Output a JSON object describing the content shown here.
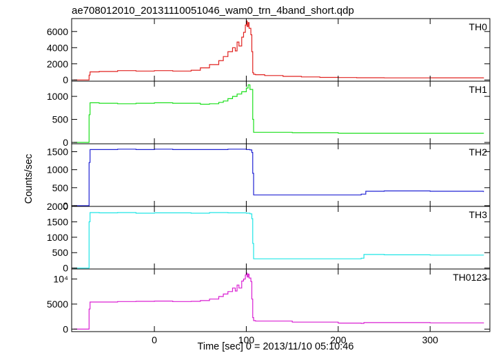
{
  "chart_data": {
    "type": "line",
    "title": "ae708012010_20131110051046_wam0_trn_4band_short.qdp",
    "xlabel": "Time [sec] 0 = 2013/11/10 05:10:46",
    "ylabel": "Counts/sec",
    "xlim": [
      -90,
      365
    ],
    "x_ticks": [
      0,
      100,
      200,
      300
    ],
    "x_tick_labels": [
      "0",
      "100",
      "200",
      "300"
    ],
    "panels": [
      {
        "name": "TH0",
        "color": "#e0201e",
        "ylim": [
          -150,
          7600
        ],
        "y_ticks": [
          0,
          2000,
          4000,
          6000
        ],
        "y_tick_labels": [
          "0",
          "2000",
          "4000",
          "6000"
        ],
        "x": [
          -88,
          -72,
          -71,
          -70,
          -60,
          -40,
          -20,
          0,
          20,
          40,
          50,
          60,
          70,
          75,
          80,
          85,
          88,
          90,
          92,
          95,
          97,
          99,
          100,
          101,
          102,
          103,
          105,
          106,
          107,
          108,
          110,
          120,
          140,
          160,
          180,
          200,
          220,
          250,
          300,
          358
        ],
        "y": [
          0,
          0,
          600,
          1000,
          1050,
          1150,
          1100,
          1150,
          1100,
          1200,
          1500,
          1900,
          2400,
          2900,
          3500,
          4000,
          3600,
          4700,
          4200,
          5300,
          5900,
          6800,
          7300,
          6600,
          7100,
          6400,
          5600,
          3500,
          900,
          700,
          650,
          550,
          450,
          380,
          320,
          300,
          280,
          260,
          270,
          200
        ]
      },
      {
        "name": "TH1",
        "color": "#1adf1a",
        "ylim": [
          -30,
          1330
        ],
        "y_ticks": [
          0,
          500,
          1000
        ],
        "y_tick_labels": [
          "0",
          "500",
          "1000"
        ],
        "x": [
          -88,
          -72,
          -71,
          -70,
          -60,
          -40,
          -20,
          0,
          20,
          40,
          50,
          60,
          70,
          75,
          80,
          85,
          90,
          95,
          100,
          102,
          104,
          106,
          107,
          108,
          110,
          150,
          200,
          250,
          300,
          358
        ],
        "y": [
          0,
          0,
          600,
          860,
          850,
          840,
          850,
          860,
          850,
          850,
          830,
          840,
          870,
          900,
          950,
          1000,
          1050,
          1100,
          1180,
          1250,
          1150,
          1150,
          500,
          220,
          220,
          210,
          200,
          200,
          200,
          190
        ]
      },
      {
        "name": "TH2",
        "color": "#1f21d3",
        "ylim": [
          -20,
          1720
        ],
        "y_ticks": [
          0,
          500,
          1000,
          1500
        ],
        "y_tick_labels": [
          "0",
          "500",
          "1000",
          "1500"
        ],
        "x": [
          -88,
          -72,
          -71,
          -70,
          -60,
          -40,
          -20,
          0,
          20,
          40,
          60,
          80,
          100,
          104,
          106,
          107,
          108,
          110,
          150,
          200,
          225,
          230,
          250,
          300,
          358
        ],
        "y": [
          0,
          0,
          1200,
          1560,
          1560,
          1570,
          1560,
          1570,
          1560,
          1560,
          1560,
          1570,
          1560,
          1550,
          1480,
          900,
          300,
          300,
          300,
          300,
          320,
          400,
          410,
          400,
          380
        ]
      },
      {
        "name": "TH3",
        "color": "#1de5e6",
        "ylim": [
          -30,
          2000
        ],
        "y_ticks": [
          0,
          500,
          1000,
          1500,
          2000
        ],
        "y_tick_labels": [
          "0",
          "500",
          "1000",
          "1500",
          "2000"
        ],
        "x": [
          -88,
          -72,
          -71,
          -70,
          -60,
          -40,
          -20,
          0,
          20,
          40,
          60,
          80,
          100,
          104,
          106,
          107,
          108,
          110,
          150,
          200,
          225,
          228,
          250,
          300,
          358
        ],
        "y": [
          0,
          0,
          1500,
          1800,
          1790,
          1800,
          1780,
          1790,
          1790,
          1780,
          1800,
          1790,
          1780,
          1760,
          1600,
          800,
          300,
          300,
          300,
          300,
          320,
          440,
          430,
          420,
          410
        ]
      },
      {
        "name": "TH0123",
        "color": "#d91ed2",
        "ylim": [
          -500,
          12000
        ],
        "y_ticks": [
          0,
          5000,
          10000
        ],
        "y_tick_labels": [
          "0",
          "5000",
          "10⁴"
        ],
        "x": [
          -88,
          -72,
          -71,
          -70,
          -60,
          -40,
          -20,
          0,
          20,
          40,
          50,
          60,
          70,
          75,
          80,
          85,
          88,
          90,
          92,
          95,
          97,
          99,
          100,
          101,
          102,
          103,
          105,
          106,
          107,
          108,
          110,
          150,
          200,
          225,
          228,
          250,
          300,
          358
        ],
        "y": [
          0,
          0,
          4000,
          5400,
          5400,
          5500,
          5550,
          5600,
          5500,
          5550,
          5700,
          6000,
          6500,
          7000,
          7500,
          8200,
          7600,
          8800,
          8200,
          9600,
          10000,
          10800,
          11200,
          10400,
          11000,
          10200,
          9500,
          6000,
          2300,
          1700,
          1600,
          1400,
          1200,
          1150,
          1300,
          1300,
          1250,
          1150
        ]
      }
    ]
  }
}
